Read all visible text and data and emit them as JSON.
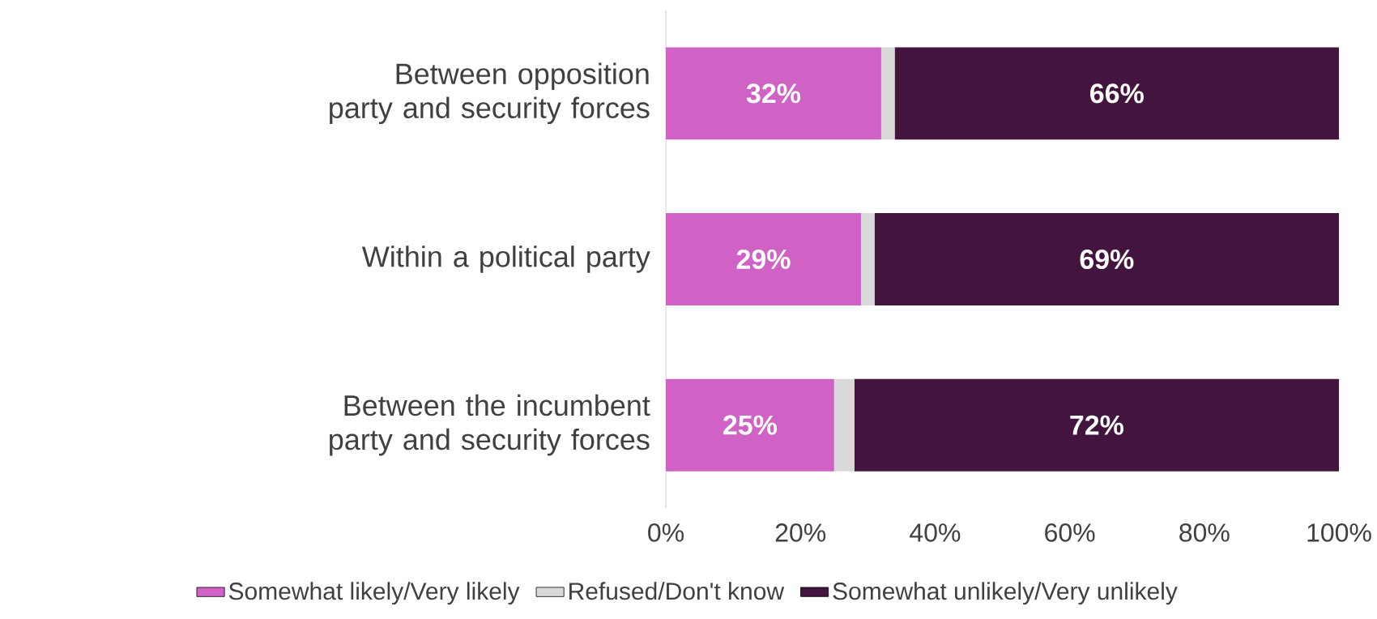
{
  "chart_data": {
    "type": "bar",
    "orientation": "horizontal",
    "stacked": true,
    "categories": [
      "Between opposition party and security forces",
      "Within a political party",
      "Between the incumbent party and security forces"
    ],
    "series": [
      {
        "name": "Somewhat likely/Very likely",
        "color": "#d062c6",
        "values": [
          32,
          29,
          25
        ],
        "value_labels": [
          "32%",
          "29%",
          "25%"
        ]
      },
      {
        "name": "Refused/Don't know",
        "color": "#d9d9d9",
        "values": [
          2,
          2,
          3
        ]
      },
      {
        "name": "Somewhat unlikely/Very unlikely",
        "color": "#43143d",
        "values": [
          66,
          69,
          72
        ],
        "value_labels": [
          "66%",
          "69%",
          "72%"
        ]
      }
    ],
    "xlim": [
      0,
      100
    ],
    "xticks": [
      {
        "value": 0,
        "label": "0%"
      },
      {
        "value": 20,
        "label": "20%"
      },
      {
        "value": 40,
        "label": "40%"
      },
      {
        "value": 60,
        "label": "60%"
      },
      {
        "value": 80,
        "label": "80%"
      },
      {
        "value": 100,
        "label": "100%"
      }
    ],
    "legend": "bottom",
    "grid": false
  }
}
